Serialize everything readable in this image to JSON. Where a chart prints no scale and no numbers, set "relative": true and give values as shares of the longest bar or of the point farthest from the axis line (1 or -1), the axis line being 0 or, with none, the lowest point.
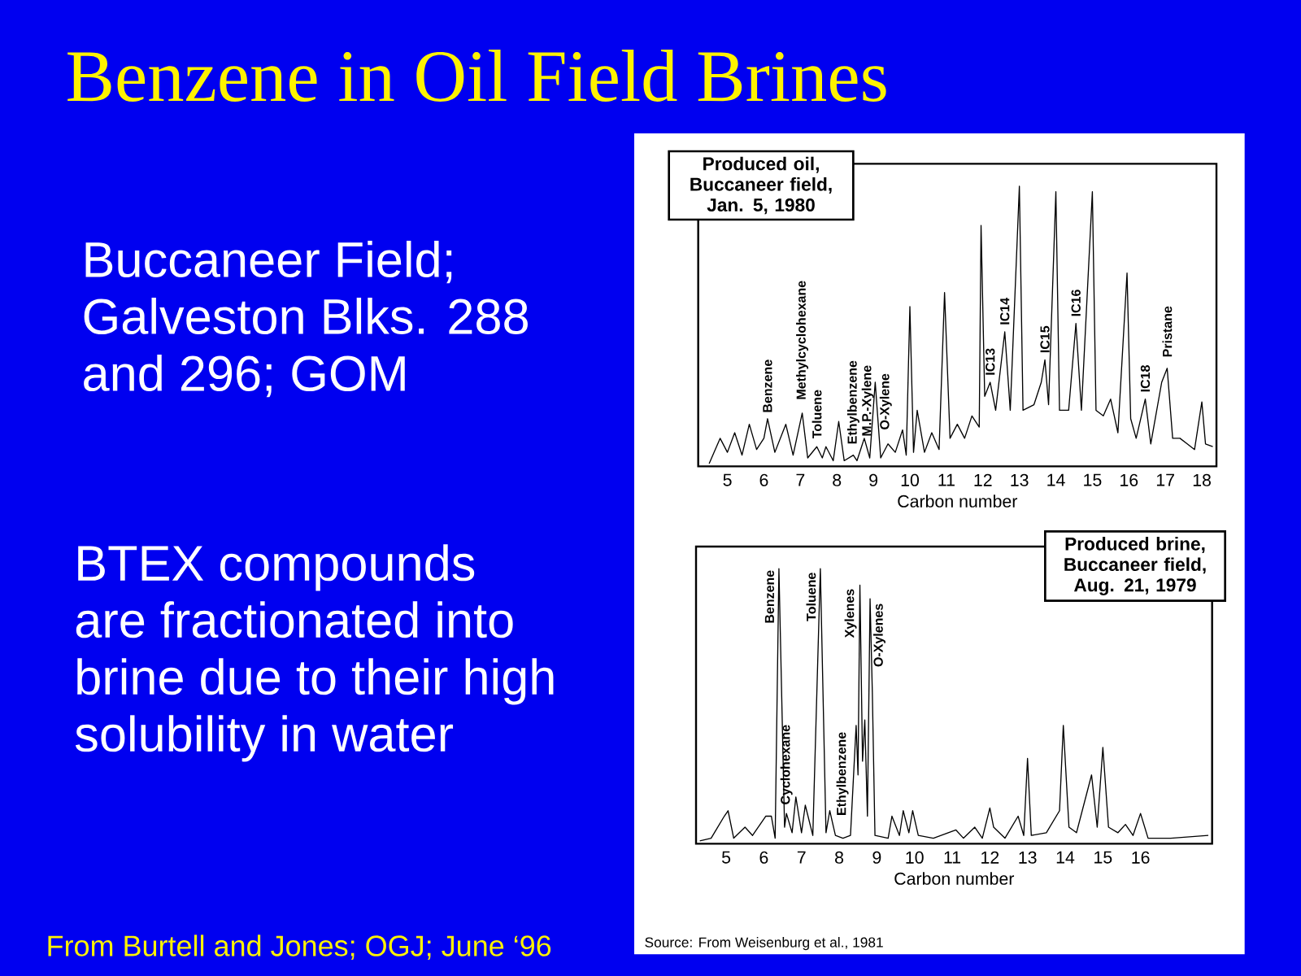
{
  "chart_data": [
    {
      "type": "line",
      "title": "Benzene in Oil Field Brines",
      "subtitle": "Produced oil, Buccaneer field, Jan. 5, 1980",
      "xlabel": "Carbon number",
      "relative": true,
      "tick_labels": "x",
      "xlim": [
        4.2,
        18.4
      ],
      "xticks": [
        5,
        6,
        7,
        8,
        9,
        10,
        11,
        12,
        13,
        14,
        15,
        16,
        17,
        18
      ],
      "x": [
        4.5,
        4.8,
        5.0,
        5.2,
        5.4,
        5.6,
        5.8,
        6.0,
        6.1,
        6.3,
        6.6,
        6.8,
        7.05,
        7.2,
        7.45,
        7.6,
        7.7,
        7.9,
        8.05,
        8.2,
        8.45,
        8.55,
        8.65,
        8.75,
        8.9,
        9.05,
        9.2,
        9.4,
        9.6,
        9.8,
        9.9,
        10.0,
        10.1,
        10.2,
        10.4,
        10.6,
        10.8,
        10.95,
        11.1,
        11.3,
        11.5,
        11.7,
        11.9,
        11.95,
        12.05,
        12.2,
        12.35,
        12.6,
        12.75,
        13.0,
        13.1,
        13.4,
        13.6,
        13.7,
        13.8,
        14.0,
        14.1,
        14.35,
        14.55,
        14.7,
        15.0,
        15.1,
        15.3,
        15.5,
        15.7,
        15.95,
        16.05,
        16.2,
        16.45,
        16.6,
        16.9,
        17.05,
        17.2,
        17.4,
        17.6,
        17.8,
        18.0,
        18.1,
        18.3
      ],
      "values": [
        0.01,
        0.1,
        0.05,
        0.12,
        0.04,
        0.15,
        0.06,
        0.1,
        0.17,
        0.05,
        0.15,
        0.04,
        0.19,
        0.03,
        0.07,
        0.03,
        0.07,
        0.02,
        0.16,
        0.02,
        0.04,
        0.02,
        0.06,
        0.1,
        0.03,
        0.3,
        0.03,
        0.08,
        0.05,
        0.13,
        0.04,
        0.57,
        0.05,
        0.2,
        0.05,
        0.12,
        0.06,
        0.62,
        0.1,
        0.15,
        0.1,
        0.18,
        0.14,
        0.86,
        0.25,
        0.3,
        0.2,
        0.48,
        0.2,
        1.0,
        0.2,
        0.22,
        0.3,
        0.38,
        0.22,
        0.98,
        0.2,
        0.2,
        0.51,
        0.2,
        0.98,
        0.2,
        0.18,
        0.24,
        0.12,
        0.69,
        0.17,
        0.1,
        0.24,
        0.08,
        0.3,
        0.35,
        0.1,
        0.1,
        0.08,
        0.06,
        0.23,
        0.08,
        0.07
      ],
      "color": "#000000",
      "annotations": [
        "Buccaneer Field; Galveston Blks. 288 and 296; GOM",
        "BTEX compounds are fractionated into brine due to their high solubility in water",
        "From Burtell and Jones; OGJ; June ‘96",
        {
          "text": "Benzene",
          "x": 6.1,
          "y": 0.17
        },
        {
          "text": "Methylcyclohexane",
          "x": 7.05,
          "y": 0.19
        },
        {
          "text": "Toluene",
          "x": 7.45,
          "y": 0.07
        },
        {
          "text": "Ethylbenzene",
          "x": 8.45,
          "y": 0.04
        },
        {
          "text": "M.P.-Xylene",
          "x": 8.65,
          "y": 0.06
        },
        {
          "text": "O-Xylene",
          "x": 8.75,
          "y": 0.1
        },
        {
          "text": "IC13",
          "x": 12.2,
          "y": 0.3
        },
        {
          "text": "IC14",
          "x": 12.6,
          "y": 0.48
        },
        {
          "text": "IC15",
          "x": 13.7,
          "y": 0.38
        },
        {
          "text": "IC16",
          "x": 14.55,
          "y": 0.51
        },
        {
          "text": "IC18",
          "x": 16.45,
          "y": 0.24
        },
        {
          "text": "Pristane",
          "x": 17.05,
          "y": 0.35
        }
      ]
    },
    {
      "type": "line",
      "subtitle": "Produced brine, Buccaneer field, Aug. 21, 1979",
      "xlabel": "Carbon number",
      "relative": true,
      "tick_labels": "x",
      "xlim": [
        4.2,
        17.9
      ],
      "xticks": [
        5,
        6,
        7,
        8,
        9,
        10,
        11,
        12,
        13,
        14,
        15,
        16
      ],
      "x": [
        4.3,
        4.6,
        4.95,
        5.05,
        5.2,
        5.5,
        5.7,
        6.05,
        6.2,
        6.3,
        6.4,
        6.55,
        6.6,
        6.75,
        6.85,
        7.0,
        7.1,
        7.3,
        7.5,
        7.65,
        7.75,
        7.9,
        8.1,
        8.3,
        8.45,
        8.5,
        8.55,
        8.62,
        8.68,
        8.75,
        8.82,
        8.88,
        8.95,
        9.3,
        9.4,
        9.6,
        9.7,
        9.85,
        9.95,
        10.1,
        10.5,
        11.1,
        11.3,
        11.6,
        11.8,
        12.0,
        12.1,
        12.4,
        12.75,
        12.9,
        13.0,
        13.1,
        13.5,
        13.85,
        13.95,
        14.1,
        14.3,
        14.7,
        14.85,
        15.0,
        15.15,
        15.4,
        15.6,
        15.8,
        16.0,
        16.2,
        16.8,
        17.8
      ],
      "values": [
        0.01,
        0.02,
        0.1,
        0.12,
        0.02,
        0.06,
        0.03,
        0.1,
        0.1,
        0.02,
        1.0,
        0.06,
        0.11,
        0.04,
        0.17,
        0.04,
        0.14,
        0.03,
        1.0,
        0.04,
        0.12,
        0.03,
        0.02,
        0.03,
        0.43,
        0.25,
        0.94,
        0.3,
        0.45,
        0.1,
        0.89,
        0.55,
        0.03,
        0.02,
        0.1,
        0.03,
        0.12,
        0.04,
        0.12,
        0.03,
        0.02,
        0.05,
        0.02,
        0.06,
        0.02,
        0.13,
        0.06,
        0.02,
        0.1,
        0.03,
        0.31,
        0.03,
        0.04,
        0.12,
        0.43,
        0.06,
        0.04,
        0.25,
        0.06,
        0.35,
        0.06,
        0.04,
        0.07,
        0.03,
        0.11,
        0.02,
        0.02,
        0.03
      ],
      "color": "#000000",
      "annotations": [
        "Source: From Weisenburg et al., 1981",
        {
          "text": "Benzene",
          "x": 6.4,
          "y": 1.0
        },
        {
          "text": "Cyclohexane",
          "x": 6.6,
          "y": 0.11
        },
        {
          "text": "Toluene",
          "x": 7.5,
          "y": 1.0
        },
        {
          "text": "Ethylbenzene",
          "x": 8.45,
          "y": 0.43
        },
        {
          "text": "Xylenes",
          "x": 8.55,
          "y": 0.94
        },
        {
          "text": "O-Xylenes",
          "x": 8.82,
          "y": 0.89
        }
      ]
    }
  ]
}
